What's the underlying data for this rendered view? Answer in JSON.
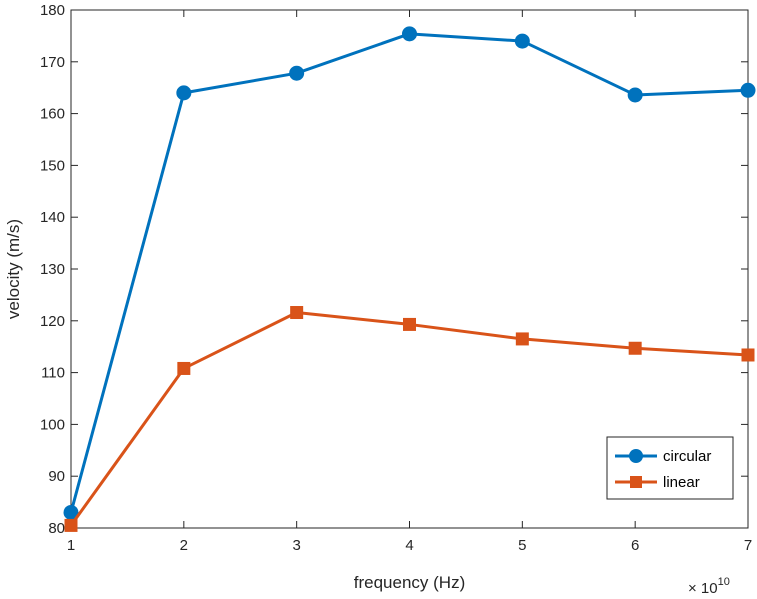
{
  "chart_data": {
    "type": "line",
    "title": "",
    "xlabel": "frequency (Hz)",
    "ylabel": "velocity (m/s)",
    "x_exponent_base": "× 10",
    "x_exponent_power": "10",
    "x": [
      1,
      2,
      3,
      4,
      5,
      6,
      7
    ],
    "xlim": [
      1,
      7
    ],
    "ylim": [
      80,
      180
    ],
    "xticks": [
      1,
      2,
      3,
      4,
      5,
      6,
      7
    ],
    "yticks": [
      80,
      90,
      100,
      110,
      120,
      130,
      140,
      150,
      160,
      170,
      180
    ],
    "grid": false,
    "legend_position": "bottom-right",
    "series": [
      {
        "name": "circular",
        "color": "#0072BD",
        "marker": "circle",
        "values": [
          83,
          164,
          167.8,
          175.4,
          174,
          163.6,
          164.5
        ]
      },
      {
        "name": "linear",
        "color": "#D95319",
        "marker": "square",
        "values": [
          80.5,
          110.8,
          121.6,
          119.3,
          116.5,
          114.7,
          113.4
        ]
      }
    ]
  }
}
